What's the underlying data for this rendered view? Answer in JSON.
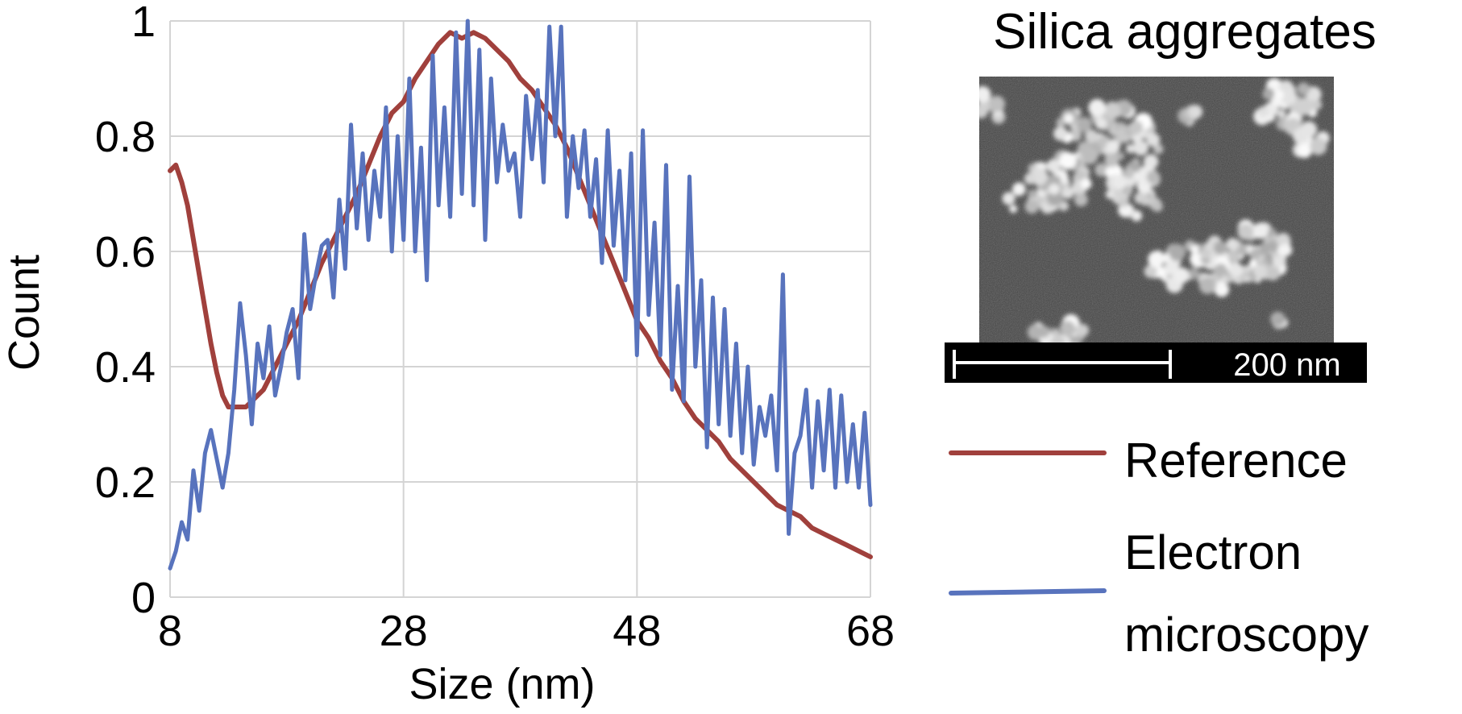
{
  "chart_data": {
    "type": "line",
    "title": "",
    "xlabel": "Size (nm)",
    "ylabel": "Count",
    "xlim": [
      8,
      68
    ],
    "ylim": [
      0,
      1
    ],
    "x_ticks": [
      "8",
      "28",
      "48",
      "68"
    ],
    "x_tick_values": [
      8,
      28,
      48,
      68
    ],
    "y_ticks": [
      "0",
      "0.2",
      "0.4",
      "0.6",
      "0.8",
      "1"
    ],
    "y_tick_values": [
      0,
      0.2,
      0.4,
      0.6,
      0.8,
      1
    ],
    "grid": true,
    "legend_position": "right",
    "series": [
      {
        "name": "Reference",
        "color": "#a0403c",
        "x": [
          8,
          8.5,
          9,
          9.5,
          10,
          10.5,
          11,
          11.5,
          12,
          12.5,
          13,
          13.5,
          14,
          14.5,
          15,
          16,
          17,
          18,
          19,
          20,
          21,
          22,
          23,
          24,
          25,
          26,
          27,
          28,
          29,
          30,
          31,
          32,
          33,
          34,
          35,
          36,
          37,
          38,
          39,
          40,
          41,
          42,
          43,
          44,
          45,
          46,
          47,
          48,
          49,
          50,
          51,
          52,
          53,
          54,
          55,
          56,
          57,
          58,
          59,
          60,
          61,
          62,
          63,
          64,
          65,
          66,
          67,
          68
        ],
        "y": [
          0.74,
          0.75,
          0.72,
          0.68,
          0.62,
          0.56,
          0.5,
          0.44,
          0.39,
          0.35,
          0.33,
          0.33,
          0.33,
          0.33,
          0.34,
          0.36,
          0.4,
          0.44,
          0.48,
          0.53,
          0.58,
          0.62,
          0.66,
          0.7,
          0.75,
          0.8,
          0.84,
          0.86,
          0.9,
          0.93,
          0.96,
          0.98,
          0.97,
          0.98,
          0.97,
          0.95,
          0.93,
          0.9,
          0.88,
          0.85,
          0.82,
          0.78,
          0.73,
          0.68,
          0.63,
          0.58,
          0.53,
          0.48,
          0.45,
          0.41,
          0.38,
          0.34,
          0.31,
          0.29,
          0.27,
          0.24,
          0.22,
          0.2,
          0.18,
          0.16,
          0.15,
          0.14,
          0.12,
          0.11,
          0.1,
          0.09,
          0.08,
          0.07
        ]
      },
      {
        "name": "Electron microscopy",
        "color": "#5873bd",
        "x": [
          8,
          8.5,
          9,
          9.5,
          10,
          10.5,
          11,
          11.5,
          12,
          12.5,
          13,
          13.5,
          14,
          14.5,
          15,
          15.5,
          16,
          16.5,
          17,
          17.5,
          18,
          18.5,
          19,
          19.5,
          20,
          20.5,
          21,
          21.5,
          22,
          22.5,
          23,
          23.5,
          24,
          24.5,
          25,
          25.5,
          26,
          26.5,
          27,
          27.5,
          28,
          28.5,
          29,
          29.5,
          30,
          30.5,
          31,
          31.5,
          32,
          32.5,
          33,
          33.5,
          34,
          34.5,
          35,
          35.5,
          36,
          36.5,
          37,
          37.5,
          38,
          38.5,
          39,
          39.5,
          40,
          40.5,
          41,
          41.5,
          42,
          42.5,
          43,
          43.5,
          44,
          44.5,
          45,
          45.5,
          46,
          46.5,
          47,
          47.5,
          48,
          48.5,
          49,
          49.5,
          50,
          50.5,
          51,
          51.5,
          52,
          52.5,
          53,
          53.5,
          54,
          54.5,
          55,
          55.5,
          56,
          56.5,
          57,
          57.5,
          58,
          58.5,
          59,
          59.5,
          60,
          60.5,
          61,
          61.5,
          62,
          62.5,
          63,
          63.5,
          64,
          64.5,
          65,
          65.5,
          66,
          66.5,
          67,
          67.5,
          68
        ],
        "y": [
          0.05,
          0.08,
          0.13,
          0.1,
          0.22,
          0.15,
          0.25,
          0.29,
          0.24,
          0.19,
          0.25,
          0.36,
          0.51,
          0.42,
          0.3,
          0.44,
          0.38,
          0.47,
          0.35,
          0.4,
          0.46,
          0.5,
          0.38,
          0.63,
          0.5,
          0.56,
          0.61,
          0.62,
          0.52,
          0.69,
          0.57,
          0.82,
          0.64,
          0.77,
          0.62,
          0.74,
          0.66,
          0.85,
          0.6,
          0.8,
          0.62,
          0.9,
          0.6,
          0.78,
          0.55,
          0.94,
          0.68,
          0.85,
          0.66,
          0.98,
          0.7,
          1.0,
          0.68,
          0.95,
          0.62,
          0.9,
          0.72,
          0.82,
          0.74,
          0.77,
          0.66,
          0.87,
          0.76,
          0.88,
          0.72,
          0.99,
          0.8,
          0.99,
          0.66,
          0.8,
          0.71,
          0.81,
          0.66,
          0.76,
          0.58,
          0.81,
          0.61,
          0.74,
          0.55,
          0.77,
          0.42,
          0.81,
          0.49,
          0.65,
          0.42,
          0.75,
          0.36,
          0.54,
          0.34,
          0.73,
          0.4,
          0.55,
          0.26,
          0.52,
          0.3,
          0.5,
          0.28,
          0.44,
          0.25,
          0.4,
          0.23,
          0.33,
          0.28,
          0.35,
          0.22,
          0.56,
          0.11,
          0.25,
          0.28,
          0.36,
          0.19,
          0.34,
          0.22,
          0.36,
          0.19,
          0.35,
          0.2,
          0.3,
          0.19,
          0.32,
          0.16
        ]
      }
    ]
  },
  "inset": {
    "title": "Silica aggregates",
    "scale_bar_label": "200 nm"
  },
  "legend": {
    "reference_label": "Reference",
    "em_label_line1": "Electron",
    "em_label_line2": "microscopy"
  }
}
